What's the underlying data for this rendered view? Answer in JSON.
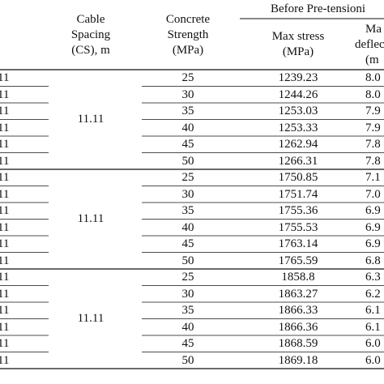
{
  "header": {
    "cable_spacing": [
      "Cable",
      "Spacing",
      "(CS), m"
    ],
    "concrete_strength": [
      "Concrete",
      "Strength",
      "(MPa)"
    ],
    "before_group": "Before Pre-tensioni",
    "max_stress": [
      "Max stress",
      "(MPa)"
    ],
    "max_deflection": [
      "Ma",
      "deflec",
      "(m"
    ]
  },
  "groups": [
    {
      "cable_spacing": "11.11",
      "rows": [
        {
          "left": "11",
          "strength": "25",
          "stress": "1239.23",
          "defl": "8.0"
        },
        {
          "left": "11",
          "strength": "30",
          "stress": "1244.26",
          "defl": "8.0"
        },
        {
          "left": "11",
          "strength": "35",
          "stress": "1253.03",
          "defl": "7.9"
        },
        {
          "left": "11",
          "strength": "40",
          "stress": "1253.33",
          "defl": "7.9"
        },
        {
          "left": "11",
          "strength": "45",
          "stress": "1262.94",
          "defl": "7.8"
        },
        {
          "left": "11",
          "strength": "50",
          "stress": "1266.31",
          "defl": "7.8"
        }
      ]
    },
    {
      "cable_spacing": "11.11",
      "rows": [
        {
          "left": "11",
          "strength": "25",
          "stress": "1750.85",
          "defl": "7.1"
        },
        {
          "left": "11",
          "strength": "30",
          "stress": "1751.74",
          "defl": "7.0"
        },
        {
          "left": "11",
          "strength": "35",
          "stress": "1755.36",
          "defl": "6.9"
        },
        {
          "left": "11",
          "strength": "40",
          "stress": "1755.53",
          "defl": "6.9"
        },
        {
          "left": "11",
          "strength": "45",
          "stress": "1763.14",
          "defl": "6.9"
        },
        {
          "left": "11",
          "strength": "50",
          "stress": "1765.59",
          "defl": "6.8"
        }
      ]
    },
    {
      "cable_spacing": "11.11",
      "rows": [
        {
          "left": "11",
          "strength": "25",
          "stress": "1858.8",
          "defl": "6.3"
        },
        {
          "left": "11",
          "strength": "30",
          "stress": "1863.27",
          "defl": "6.2"
        },
        {
          "left": "11",
          "strength": "35",
          "stress": "1866.33",
          "defl": "6.1"
        },
        {
          "left": "11",
          "strength": "40",
          "stress": "1866.36",
          "defl": "6.1"
        },
        {
          "left": "11",
          "strength": "45",
          "stress": "1868.59",
          "defl": "6.0"
        },
        {
          "left": "11",
          "strength": "50",
          "stress": "1869.18",
          "defl": "6.0"
        }
      ]
    }
  ]
}
